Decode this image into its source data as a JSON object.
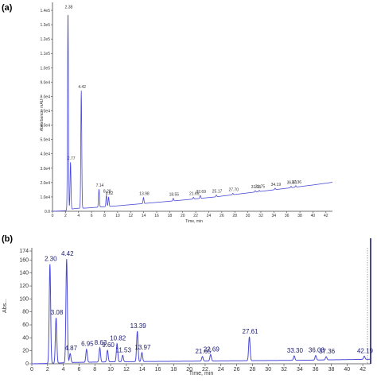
{
  "panel_labels": [
    "(a)",
    "(b)"
  ],
  "chart_data": [
    {
      "type": "line",
      "panel": "(a)",
      "xlabel": "Time, min",
      "ylabel": "Absorbance, mAU",
      "xlim": [
        0,
        43
      ],
      "ylim": [
        0,
        145000
      ],
      "x_ticks": [
        0,
        2,
        4,
        6,
        8,
        10,
        12,
        14,
        16,
        18,
        20,
        22,
        24,
        26,
        28,
        30,
        32,
        34,
        36,
        38,
        40,
        42
      ],
      "y_ticks": [
        {
          "value": 0,
          "label": "0.0"
        },
        {
          "value": 10000,
          "label": "1.0e4"
        },
        {
          "value": 20000,
          "label": "2.0e4"
        },
        {
          "value": 30000,
          "label": "3.0e4"
        },
        {
          "value": 40000,
          "label": "4.0e4"
        },
        {
          "value": 50000,
          "label": "5.0e4"
        },
        {
          "value": 60000,
          "label": "6.0e4"
        },
        {
          "value": 70000,
          "label": "7.0e4"
        },
        {
          "value": 80000,
          "label": "8.0e4"
        },
        {
          "value": 90000,
          "label": "9.0e4"
        },
        {
          "value": 100000,
          "label": "1.0e5"
        },
        {
          "value": 110000,
          "label": "1.1e5"
        },
        {
          "value": 120000,
          "label": "1.2e5"
        },
        {
          "value": 130000,
          "label": "1.3e5"
        },
        {
          "value": 140000,
          "label": "1.4e5"
        }
      ],
      "baseline": [
        [
          0,
          0
        ],
        [
          1.8,
          300
        ],
        [
          3.5,
          2000
        ],
        [
          5,
          2200
        ],
        [
          10,
          3800
        ],
        [
          15,
          5800
        ],
        [
          20,
          7800
        ],
        [
          25,
          10000
        ],
        [
          30,
          12800
        ],
        [
          35,
          15500
        ],
        [
          40,
          18300
        ],
        [
          43,
          20200
        ]
      ],
      "peaks": [
        {
          "t": 2.38,
          "h": 139000,
          "label": "2.38"
        },
        {
          "t": 2.77,
          "h": 33000,
          "label": "2.77"
        },
        {
          "t": 4.42,
          "h": 82000,
          "label": "4.42"
        },
        {
          "t": 7.14,
          "h": 12500,
          "label": "7.14"
        },
        {
          "t": 8.28,
          "h": 8000,
          "label": "8.28"
        },
        {
          "t": 8.62,
          "h": 6500,
          "label": "8.62"
        },
        {
          "t": 13.98,
          "h": 4200,
          "label": "13.98"
        },
        {
          "t": 18.55,
          "h": 1800,
          "label": "18.55"
        },
        {
          "t": 21.65,
          "h": 1200,
          "label": "21.65"
        },
        {
          "t": 22.69,
          "h": 2000,
          "label": "22.69"
        },
        {
          "t": 25.17,
          "h": 1200,
          "label": "25.17"
        },
        {
          "t": 27.7,
          "h": 1000,
          "label": "27.70"
        },
        {
          "t": 31.15,
          "h": 1000,
          "label": "31.15"
        },
        {
          "t": 31.75,
          "h": 800,
          "label": "31.75"
        },
        {
          "t": 34.19,
          "h": 1000,
          "label": "34.19"
        },
        {
          "t": 36.63,
          "h": 1000,
          "label": "36.63"
        },
        {
          "t": 37.36,
          "h": 1000,
          "label": "37.36"
        }
      ]
    },
    {
      "type": "line",
      "panel": "(b)",
      "xlabel": "Time, min",
      "ylabel": "Abs...",
      "xlim": [
        0,
        43
      ],
      "ylim": [
        0,
        174
      ],
      "x_ticks": [
        0,
        2,
        4,
        6,
        8,
        10,
        12,
        14,
        16,
        18,
        20,
        22,
        24,
        26,
        28,
        30,
        32,
        34,
        36,
        38,
        40,
        42
      ],
      "y_ticks": [
        {
          "value": 0,
          "label": "0"
        },
        {
          "value": 20,
          "label": "20"
        },
        {
          "value": 40,
          "label": "40"
        },
        {
          "value": 60,
          "label": "60"
        },
        {
          "value": 80,
          "label": "80"
        },
        {
          "value": 100,
          "label": "100"
        },
        {
          "value": 120,
          "label": "120"
        },
        {
          "value": 140,
          "label": "140"
        },
        {
          "value": 160,
          "label": "160"
        },
        {
          "value": 174,
          "label": "174"
        }
      ],
      "baseline": [
        [
          0,
          0
        ],
        [
          2,
          0.5
        ],
        [
          5,
          2
        ],
        [
          10,
          3
        ],
        [
          15,
          3.5
        ],
        [
          20,
          4
        ],
        [
          25,
          4.5
        ],
        [
          30,
          5
        ],
        [
          35,
          5.5
        ],
        [
          40,
          6.5
        ],
        [
          43,
          7
        ]
      ],
      "peaks": [
        {
          "t": 2.3,
          "h": 153,
          "label": "2.30"
        },
        {
          "t": 3.08,
          "h": 70,
          "label": "3.08"
        },
        {
          "t": 4.42,
          "h": 160,
          "label": "4.42"
        },
        {
          "t": 4.87,
          "h": 14,
          "label": "4.87"
        },
        {
          "t": 6.95,
          "h": 20,
          "label": "6.95"
        },
        {
          "t": 8.63,
          "h": 22,
          "label": "8.63"
        },
        {
          "t": 9.6,
          "h": 18,
          "label": "9.60"
        },
        {
          "t": 10.82,
          "h": 28,
          "label": "10.82"
        },
        {
          "t": 11.53,
          "h": 10,
          "label": "11.53"
        },
        {
          "t": 13.39,
          "h": 47,
          "label": "13.39"
        },
        {
          "t": 13.97,
          "h": 14,
          "label": "13.97"
        },
        {
          "t": 21.65,
          "h": 7,
          "label": "21.65"
        },
        {
          "t": 22.69,
          "h": 10,
          "label": "22.69"
        },
        {
          "t": 27.61,
          "h": 37,
          "label": "27.61"
        },
        {
          "t": 33.3,
          "h": 7,
          "label": "33.30"
        },
        {
          "t": 36.03,
          "h": 7,
          "label": "36.03"
        },
        {
          "t": 37.36,
          "h": 5,
          "label": "37.36"
        },
        {
          "t": 42.19,
          "h": 5,
          "label": "42.19"
        }
      ]
    }
  ],
  "colors": {
    "trace": "#4a4ad6",
    "axis": "#444444",
    "background": "#ffffff"
  }
}
